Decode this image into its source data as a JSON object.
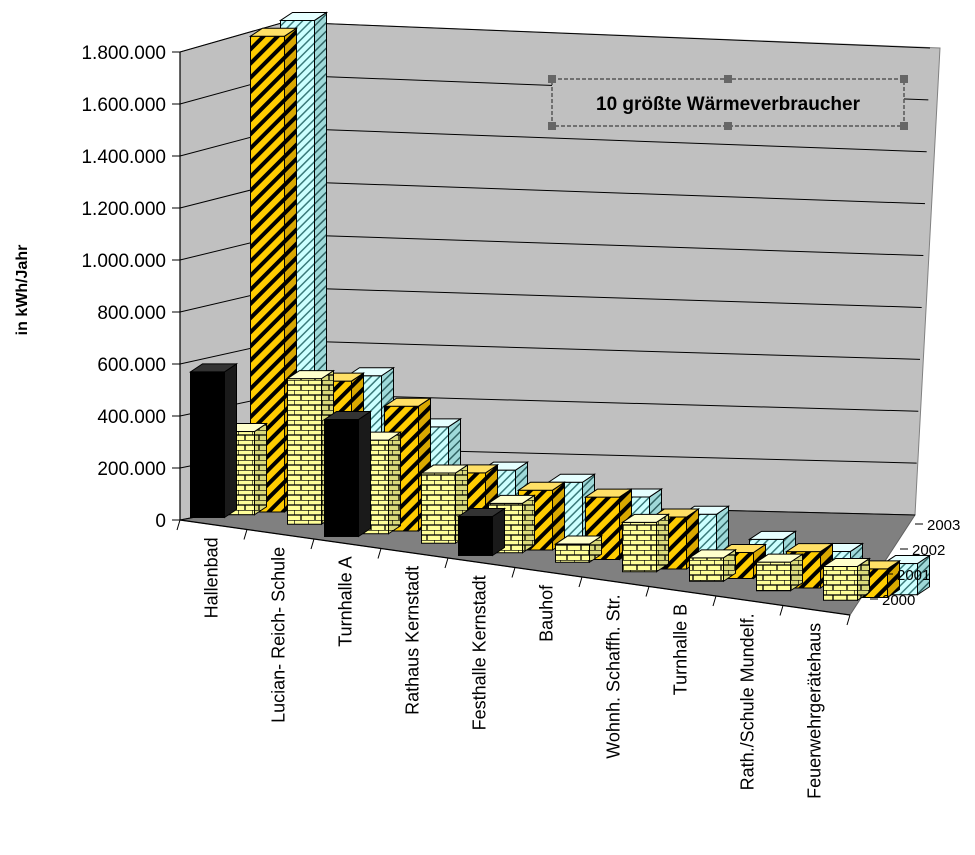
{
  "chart_data": {
    "type": "bar",
    "title": "10 größte Wärmeverbraucher",
    "ylabel": "in kWh/Jahr",
    "ylim": [
      0,
      1800000
    ],
    "y_ticks": [
      "0",
      "200.000",
      "400.000",
      "600.000",
      "800.000",
      "1.000.000",
      "1.200.000",
      "1.400.000",
      "1.600.000",
      "1.800.000"
    ],
    "categories": [
      "Hallenbad",
      "Lucian- Reich- Schule",
      "Turnhalle A",
      "Rathaus Kernstadt",
      "Festhalle Kernstadt",
      "Bauhof",
      "Wohnh. Schaffh. Str.",
      "Turnhalle B",
      "Rath./Schule Mundelf.",
      "Feuerwehrgerätehaus"
    ],
    "series": [
      {
        "name": "2000",
        "color": "#000000",
        "pattern": "solid",
        "values": [
          560000,
          0,
          450000,
          0,
          150000,
          0,
          0,
          0,
          0,
          0
        ]
      },
      {
        "name": "2001",
        "color": "#ffff99",
        "pattern": "brick",
        "values": [
          320000,
          560000,
          360000,
          270000,
          190000,
          70000,
          190000,
          90000,
          110000,
          130000
        ]
      },
      {
        "name": "2002",
        "color": "#ffcc00",
        "pattern": "diagonal",
        "values": [
          1830000,
          540000,
          480000,
          260000,
          230000,
          240000,
          200000,
          100000,
          140000,
          110000
        ]
      },
      {
        "name": "2003",
        "color": "#ccffff",
        "pattern": "hatch",
        "values": [
          1880000,
          550000,
          390000,
          260000,
          250000,
          230000,
          200000,
          140000,
          130000,
          120000
        ]
      }
    ],
    "legend": "none",
    "grid": true
  }
}
